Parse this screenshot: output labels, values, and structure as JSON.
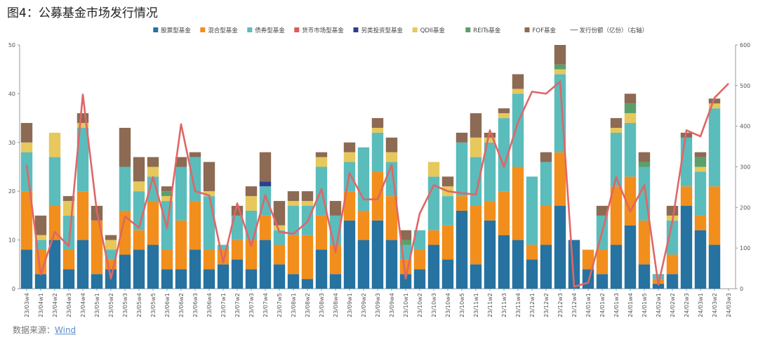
{
  "title": "图4：公募基金市场发行情况",
  "source_label": "数据来源：",
  "source_link": "Wind",
  "chart_data": {
    "type": "bar",
    "stacked": true,
    "categories": [
      "23/03w4",
      "23/04w1",
      "23/04w2",
      "23/04w3",
      "23/04w4",
      "23/05w1",
      "23/05w2",
      "23/05w3",
      "23/05w4",
      "23/05w5",
      "23/06w1",
      "23/06w2",
      "23/06w3",
      "23/06w4",
      "23/07w1",
      "23/07w2",
      "23/07w3",
      "23/07w4",
      "23/07w5",
      "23/08w1",
      "23/08w2",
      "23/08w3",
      "23/08w4",
      "23/09w1",
      "23/09w2",
      "23/09w3",
      "23/09w4",
      "23/10w1",
      "23/10w2",
      "23/10w3",
      "23/10w4",
      "23/10w5",
      "23/11w1",
      "23/11w2",
      "23/11w3",
      "23/11w4",
      "23/12w1",
      "23/12w2",
      "23/12w3",
      "23/12w4",
      "24/01w1",
      "24/01w2",
      "24/01w3",
      "24/01w4",
      "24/01w5",
      "24/02w1",
      "24/02w2",
      "24/02w3",
      "24/03w1",
      "24/03w2",
      "24/03w3"
    ],
    "tick_labels": [
      "23/03w4",
      "23/04w1",
      "23/04w2",
      "23/04w3",
      "23/04w4",
      "23/05w1",
      "23/05w2",
      "23/05w3",
      "23/05w4",
      "23/05w5",
      "23/06w1",
      "23/06w2",
      "23/06w3",
      "23/06w4",
      "23/07w1",
      "23/07w2",
      "23/07w3",
      "23/07w4",
      "23/07w5",
      "23/08w1",
      "23/08w2",
      "23/08w3",
      "23/08w4",
      "23/09w1",
      "23/09w2",
      "23/09w3",
      "23/09w4",
      "23/10w1",
      "23/10w2",
      "23/10w3",
      "23/10w4",
      "23/10w5",
      "23/11w1",
      "23/11w2",
      "23/11w3",
      "23/11w4",
      "23/12w1",
      "23/12w2",
      "23/12w3",
      "23/12w4",
      "24/01w1",
      "24/01w2",
      "24/01w3",
      "24/01w4",
      "24/01w5",
      "24/02w1",
      "24/02w2",
      "24/02w3",
      "24/03w1",
      "24/03w2",
      "24/03w3"
    ],
    "series": [
      {
        "name": "股票型基金",
        "color": "#2672a0",
        "axis": "left",
        "values": [
          8,
          3,
          10,
          4,
          10,
          3,
          4,
          7,
          8,
          9,
          4,
          4,
          8,
          4,
          5,
          6,
          4,
          10,
          5,
          3,
          2,
          8,
          3,
          14,
          10,
          14,
          10,
          3,
          4,
          9,
          6,
          16,
          5,
          14,
          11,
          10,
          6,
          9,
          17,
          10,
          4,
          3,
          9,
          13,
          5,
          1,
          3,
          17,
          12,
          9,
          0
        ]
      },
      {
        "name": "混合型基金",
        "color": "#f28e1c",
        "axis": "left",
        "values": [
          12,
          5,
          7,
          4,
          10,
          11,
          2,
          9,
          4,
          9,
          4,
          10,
          10,
          4,
          3,
          4,
          6,
          5,
          4,
          8,
          9,
          7,
          6,
          6,
          6,
          10,
          9,
          3,
          4,
          3,
          7,
          3,
          12,
          4,
          9,
          15,
          3,
          8,
          11,
          0,
          4,
          5,
          12,
          10,
          9,
          1,
          4,
          4,
          3,
          12,
          0
        ]
      },
      {
        "name": "债券型基金",
        "color": "#5bbcbc",
        "axis": "left",
        "values": [
          8,
          2,
          10,
          7,
          13,
          0,
          2,
          9,
          8,
          5,
          10,
          11,
          9,
          11,
          1,
          5,
          6,
          6,
          3,
          6,
          6,
          10,
          6,
          6,
          13,
          8,
          7,
          3,
          4,
          11,
          6,
          11,
          10,
          12,
          15,
          15,
          14,
          9,
          16,
          0,
          0,
          7,
          11,
          11,
          11,
          1,
          7,
          10,
          9,
          16,
          0
        ]
      },
      {
        "name": "货币市场型基金",
        "color": "#e05a5a",
        "axis": "left",
        "values": [
          0,
          0,
          0,
          0,
          0,
          0,
          0,
          0,
          0,
          0,
          0,
          0,
          0,
          0,
          0,
          0,
          0,
          0,
          0,
          0,
          0,
          0,
          0,
          0,
          0,
          0,
          0,
          0,
          0,
          0,
          0,
          0,
          0,
          0,
          0,
          0,
          0,
          0,
          0,
          0,
          0,
          0,
          0,
          0,
          0,
          0,
          0,
          0,
          0,
          0,
          0
        ]
      },
      {
        "name": "另类投资型基金",
        "color": "#2e3f8f",
        "axis": "left",
        "values": [
          0,
          0,
          0,
          0,
          0,
          0,
          0,
          0,
          0,
          0,
          0,
          0,
          0,
          0,
          0,
          0,
          0,
          1,
          0,
          0,
          0,
          0,
          0,
          0,
          0,
          0,
          0,
          0,
          0,
          0,
          0,
          0,
          0,
          0,
          0,
          0,
          0,
          0,
          0,
          0,
          0,
          0,
          0,
          0,
          0,
          0,
          0,
          0,
          0,
          0,
          0
        ]
      },
      {
        "name": "QDII基金",
        "color": "#e6c85c",
        "axis": "left",
        "values": [
          2,
          1,
          5,
          3,
          1,
          0,
          2,
          0,
          2,
          2,
          1,
          0,
          0,
          1,
          0,
          0,
          3,
          0,
          1,
          1,
          1,
          2,
          0,
          2,
          0,
          1,
          2,
          0,
          0,
          3,
          2,
          0,
          4,
          1,
          1,
          1,
          0,
          0,
          1,
          0,
          0,
          0,
          1,
          2,
          0,
          0,
          1,
          0,
          1,
          1,
          0
        ]
      },
      {
        "name": "REITs基金",
        "color": "#5aa06a",
        "axis": "left",
        "values": [
          0,
          0,
          0,
          0,
          0,
          0,
          0,
          0,
          0,
          0,
          1,
          0,
          0,
          0,
          0,
          0,
          0,
          0,
          0,
          0,
          0,
          0,
          0,
          0,
          0,
          0,
          0,
          1,
          0,
          0,
          0,
          0,
          0,
          0,
          0,
          0,
          0,
          0,
          1,
          0,
          0,
          0,
          0,
          2,
          1,
          0,
          0,
          0,
          2,
          0,
          0
        ]
      },
      {
        "name": "FOF基金",
        "color": "#8c6a53",
        "axis": "left",
        "values": [
          4,
          4,
          0,
          1,
          2,
          3,
          1,
          8,
          5,
          2,
          1,
          2,
          1,
          6,
          0,
          2,
          2,
          6,
          5,
          2,
          2,
          1,
          3,
          2,
          0,
          2,
          3,
          2,
          0,
          0,
          2,
          2,
          5,
          1,
          1,
          3,
          0,
          2,
          4,
          0,
          0,
          2,
          2,
          2,
          2,
          0,
          2,
          1,
          1,
          1,
          0
        ]
      }
    ],
    "line_series": {
      "name": "发行份额（亿份）（右轴）",
      "legend_label": "发行份额（亿份）（右轴）",
      "color": "#e06666",
      "axis": "right",
      "values": [
        305,
        35,
        140,
        105,
        478,
        190,
        25,
        178,
        150,
        275,
        150,
        405,
        240,
        230,
        65,
        210,
        105,
        230,
        140,
        135,
        165,
        245,
        90,
        285,
        220,
        220,
        305,
        25,
        185,
        255,
        240,
        235,
        232,
        390,
        300,
        410,
        485,
        480,
        510,
        5,
        15,
        140,
        275,
        190,
        255,
        10,
        165,
        390,
        375,
        470,
        505
      ]
    },
    "y_left": {
      "min": 0,
      "max": 50,
      "ticks": [
        0,
        10,
        20,
        30,
        40,
        50
      ]
    },
    "y_right": {
      "min": 0,
      "max": 600,
      "ticks": [
        0,
        100,
        200,
        300,
        400,
        500,
        600
      ]
    },
    "grid": false,
    "legend_position": "top"
  }
}
